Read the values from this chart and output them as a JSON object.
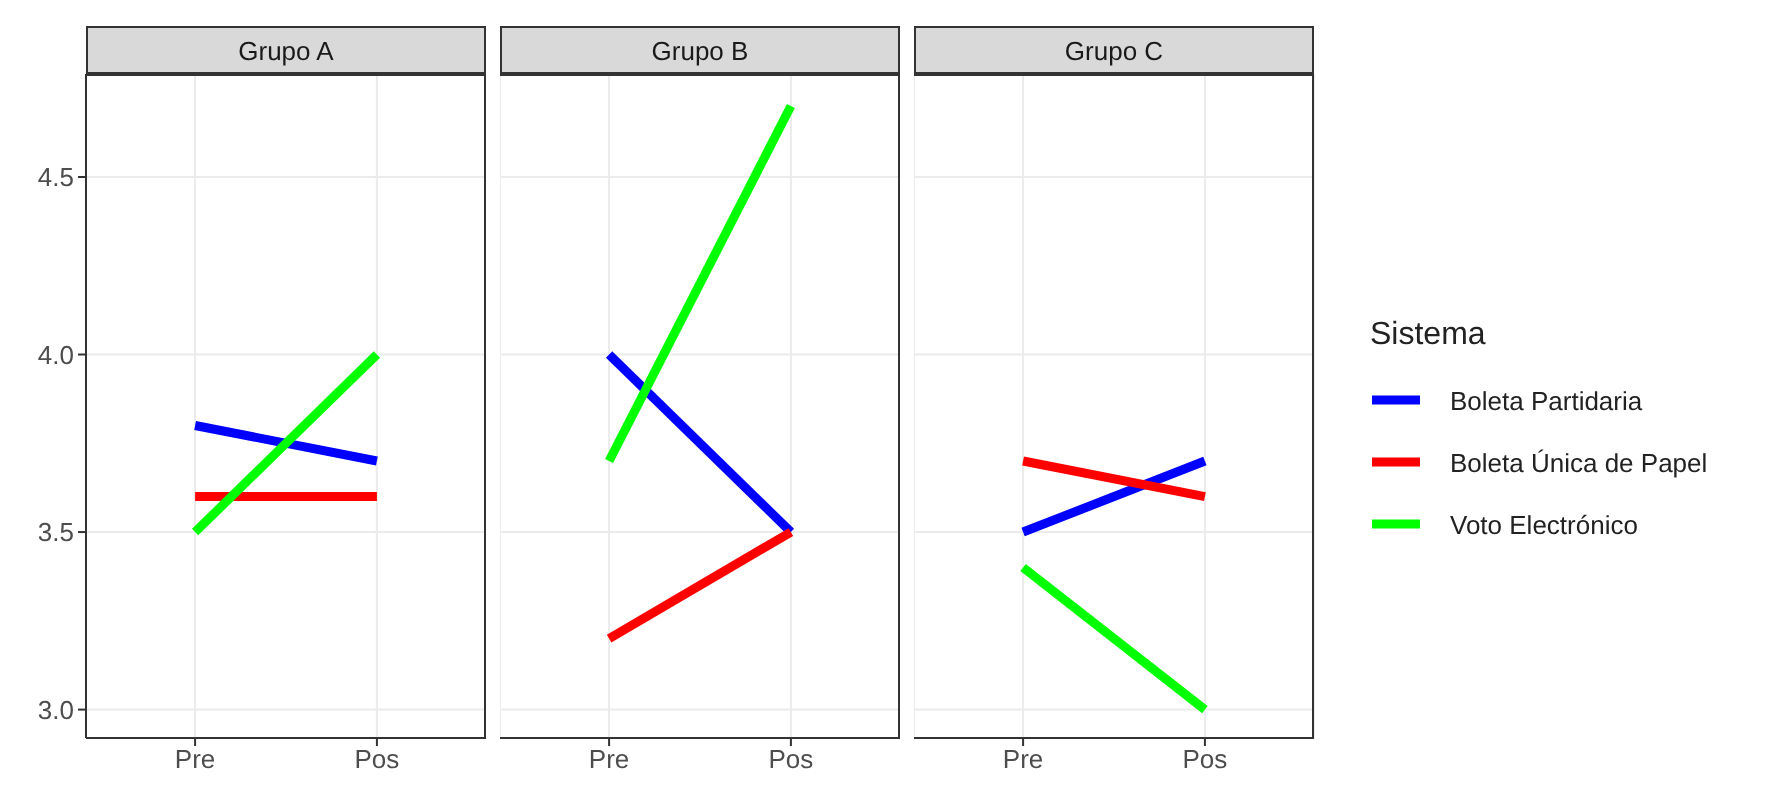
{
  "chart_data": [
    {
      "type": "line",
      "title": "Grupo A",
      "categories": [
        "Pre",
        "Pos"
      ],
      "ylim": [
        2.92,
        4.79
      ],
      "yticks": [
        {
          "value": 3,
          "label": "3.0"
        },
        3.5,
        {
          "value": 4,
          "label": "4.0"
        },
        4.5
      ],
      "grid": true,
      "series": [
        {
          "color": "#0000ff",
          "values": [
            3.8,
            3.7
          ]
        },
        {
          "color": "#ff0000",
          "values": [
            3.6,
            3.6
          ]
        },
        {
          "color": "#00ff00",
          "values": [
            3.5,
            4.0
          ]
        }
      ]
    },
    {
      "type": "line",
      "title": "Grupo B",
      "categories": [
        "Pre",
        "Pos"
      ],
      "ylim": [
        2.92,
        4.79
      ],
      "yticks": [
        3,
        3.5,
        4,
        4.5
      ],
      "grid": true,
      "tick_labels": "x",
      "series": [
        {
          "color": "#0000ff",
          "values": [
            4.0,
            3.5
          ]
        },
        {
          "color": "#ff0000",
          "values": [
            3.2,
            3.5
          ]
        },
        {
          "color": "#00ff00",
          "values": [
            3.7,
            4.7
          ]
        }
      ]
    },
    {
      "type": "line",
      "title": "Grupo C",
      "categories": [
        "Pre",
        "Pos"
      ],
      "ylim": [
        2.92,
        4.79
      ],
      "yticks": [
        3,
        3.5,
        4,
        4.5
      ],
      "grid": true,
      "tick_labels": "x",
      "legend": "right",
      "legend_title": "Sistema",
      "series": [
        {
          "name": "Boleta Partidaria",
          "color": "#0000ff",
          "values": [
            3.5,
            3.7
          ]
        },
        {
          "name": "Boleta Única de Papel",
          "color": "#ff0000",
          "values": [
            3.7,
            3.6
          ]
        },
        {
          "name": "Voto Electrónico",
          "color": "#00ff00",
          "values": [
            3.4,
            3.0
          ]
        }
      ]
    }
  ]
}
